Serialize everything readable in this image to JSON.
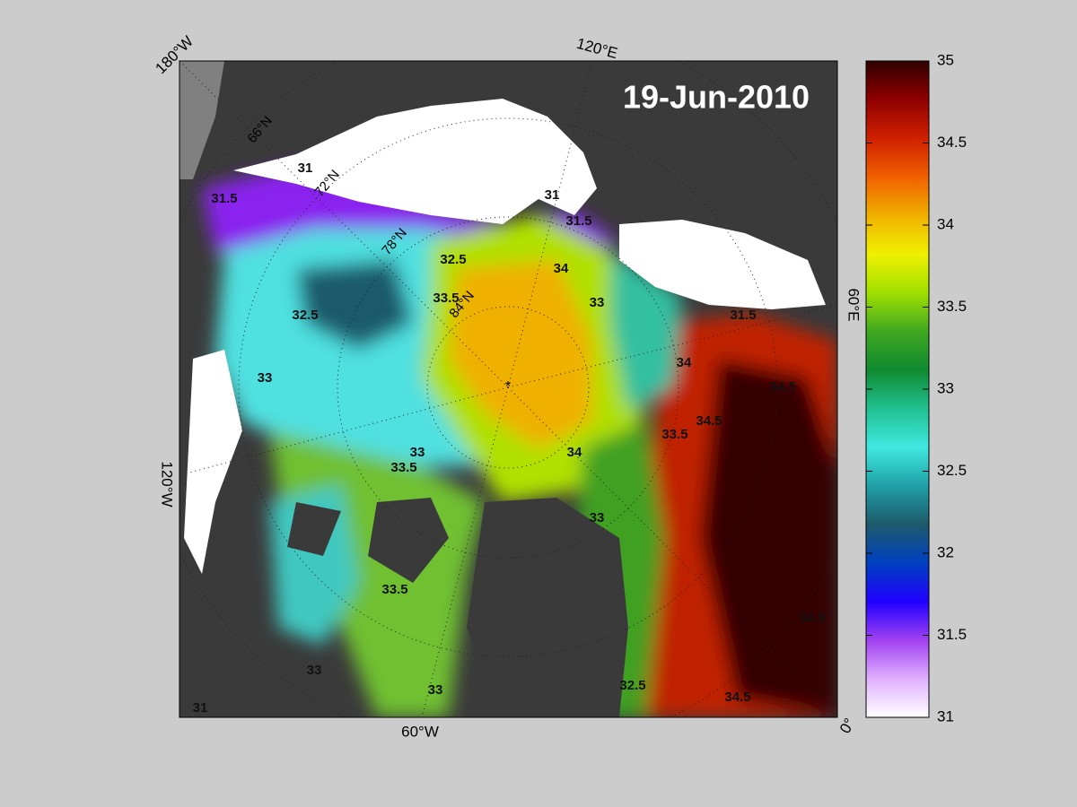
{
  "title": "19-Jun-2010",
  "map": {
    "longitude_labels": [
      "180°W",
      "120°E",
      "60°E",
      "0°",
      "60°W",
      "120°W"
    ],
    "latitude_labels": [
      "66°N",
      "72°N",
      "78°N",
      "84°N"
    ],
    "contour_labels": [
      31.5,
      31,
      32.5,
      32.5,
      33,
      33.5,
      34,
      33,
      33.5,
      34,
      33.5,
      33,
      33,
      34.5,
      34.5,
      34,
      33.5,
      32.5,
      34.5,
      34.5,
      31.5,
      31,
      31.5,
      33,
      31,
      33
    ]
  },
  "colorbar": {
    "lim": [
      31,
      35
    ],
    "ticks": [
      31,
      31.5,
      32,
      32.5,
      33,
      33.5,
      34,
      34.5,
      35
    ],
    "colors": [
      "#ffffff",
      "#e0b0ff",
      "#a040f0",
      "#2000ff",
      "#0040c0",
      "#1e5a6a",
      "#20a0a8",
      "#40e8e0",
      "#20c090",
      "#108a30",
      "#40a820",
      "#a0e000",
      "#f0f000",
      "#f0b000",
      "#f06000",
      "#d02000",
      "#900000",
      "#300000"
    ]
  }
}
